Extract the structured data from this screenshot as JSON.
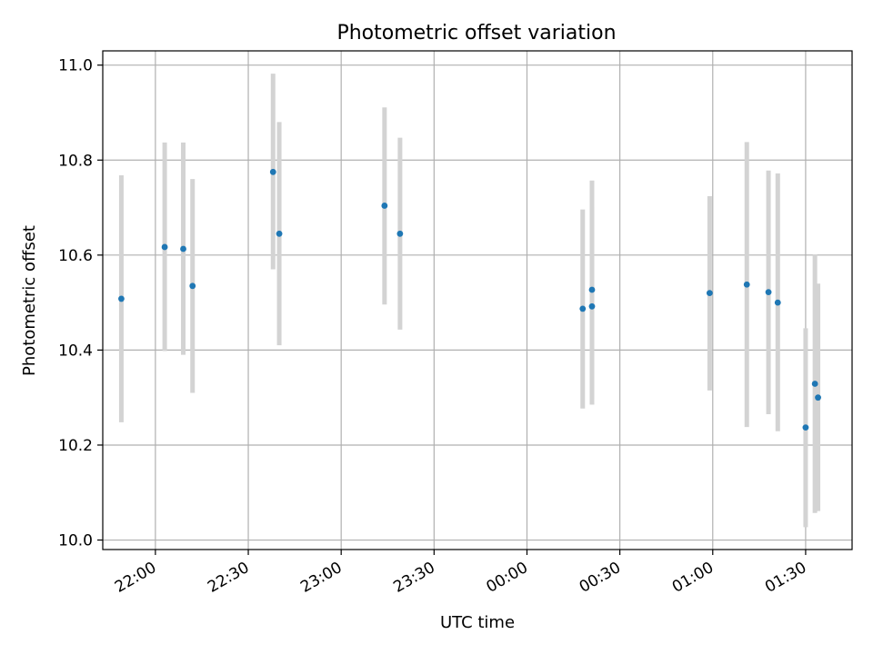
{
  "chart_data": {
    "type": "scatter",
    "title": "Photometric offset variation",
    "xlabel": "UTC time",
    "ylabel": "Photometric offset",
    "xlim": [
      "21:43",
      "01:45"
    ],
    "ylim": [
      9.98,
      11.03
    ],
    "x_ticks": [
      "22:00",
      "22:30",
      "23:00",
      "23:30",
      "00:00",
      "00:30",
      "01:00",
      "01:30"
    ],
    "y_ticks": [
      "10.0",
      "10.2",
      "10.4",
      "10.6",
      "10.8",
      "11.0"
    ],
    "grid": true,
    "marker_color": "#1f77b4",
    "errorbar_color": "#d3d3d3",
    "points": [
      {
        "time": "21:49",
        "y": 10.508,
        "lo": 10.248,
        "hi": 10.768
      },
      {
        "time": "22:03",
        "y": 10.617,
        "lo": 10.398,
        "hi": 10.837
      },
      {
        "time": "22:09",
        "y": 10.613,
        "lo": 10.39,
        "hi": 10.837
      },
      {
        "time": "22:12",
        "y": 10.535,
        "lo": 10.31,
        "hi": 10.76
      },
      {
        "time": "22:38",
        "y": 10.775,
        "lo": 10.57,
        "hi": 10.982
      },
      {
        "time": "22:40",
        "y": 10.645,
        "lo": 10.41,
        "hi": 10.88
      },
      {
        "time": "23:14",
        "y": 10.704,
        "lo": 10.496,
        "hi": 10.911
      },
      {
        "time": "23:19",
        "y": 10.645,
        "lo": 10.443,
        "hi": 10.847
      },
      {
        "time": "00:18",
        "y": 10.487,
        "lo": 10.277,
        "hi": 10.696
      },
      {
        "time": "00:21",
        "y": 10.527,
        "lo": 10.298,
        "hi": 10.757
      },
      {
        "time": "00:21",
        "y": 10.492,
        "lo": 10.285,
        "hi": 10.7
      },
      {
        "time": "00:59",
        "y": 10.52,
        "lo": 10.315,
        "hi": 10.724
      },
      {
        "time": "01:11",
        "y": 10.538,
        "lo": 10.238,
        "hi": 10.838
      },
      {
        "time": "01:18",
        "y": 10.522,
        "lo": 10.265,
        "hi": 10.778
      },
      {
        "time": "01:21",
        "y": 10.5,
        "lo": 10.229,
        "hi": 10.772
      },
      {
        "time": "01:30",
        "y": 10.237,
        "lo": 10.027,
        "hi": 10.446
      },
      {
        "time": "01:33",
        "y": 10.329,
        "lo": 10.057,
        "hi": 10.601
      },
      {
        "time": "01:34",
        "y": 10.3,
        "lo": 10.061,
        "hi": 10.54
      }
    ]
  }
}
